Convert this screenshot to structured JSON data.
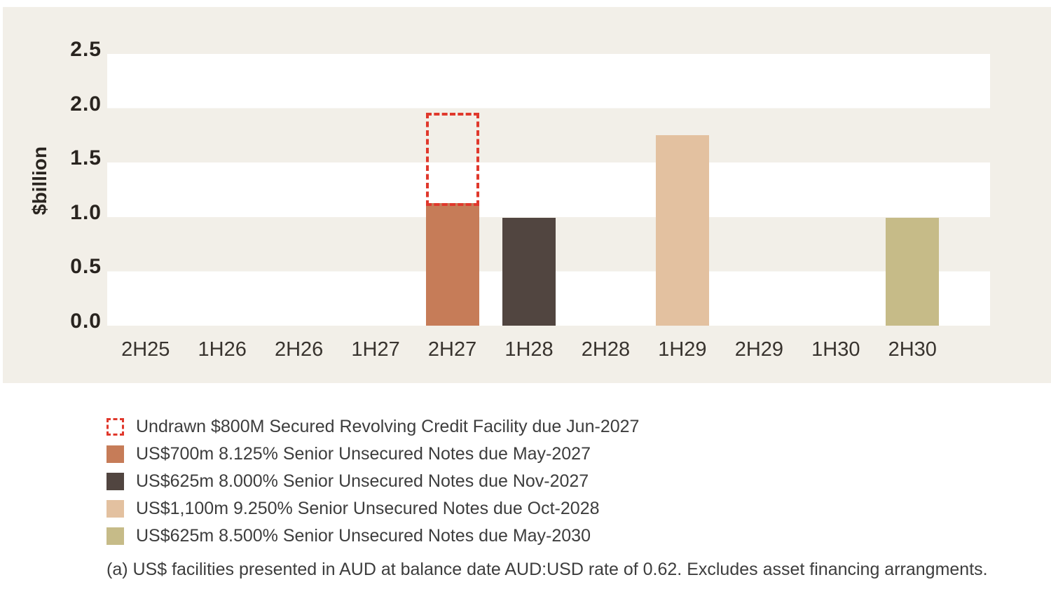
{
  "chart_data": {
    "type": "bar",
    "title": "",
    "ylabel": "$billion",
    "ylim": [
      0,
      2.5
    ],
    "ytick_interval": 0.5,
    "yticks": [
      "2.5",
      "2.0",
      "1.5",
      "1.0",
      "0.5",
      "0.0"
    ],
    "grid": "horizontal bands alternating white/beige every 0.5",
    "categories": [
      "2H25",
      "1H26",
      "2H26",
      "1H27",
      "2H27",
      "1H28",
      "2H28",
      "1H29",
      "2H29",
      "1H30",
      "2H30"
    ],
    "series": [
      {
        "name": "US$700m 8.125% Senior Unsecured Notes due May-2027",
        "color": "#c67c58",
        "values": [
          0,
          0,
          0,
          0,
          1.13,
          0,
          0,
          0,
          0,
          0,
          0
        ]
      },
      {
        "name": "US$625m 8.000% Senior Unsecured Notes due Nov-2027",
        "color": "#514540",
        "values": [
          0,
          0,
          0,
          0,
          0,
          0.99,
          0,
          0,
          0,
          0,
          0
        ]
      },
      {
        "name": "US$1,100m 9.250% Senior Unsecured Notes due Oct-2028",
        "color": "#e3c1a0",
        "values": [
          0,
          0,
          0,
          0,
          0,
          0,
          0,
          1.75,
          0,
          0,
          0
        ]
      },
      {
        "name": "US$625m 8.500% Senior Unsecured Notes due May-2030",
        "color": "#c6bb88",
        "values": [
          0,
          0,
          0,
          0,
          0,
          0,
          0,
          0,
          0,
          0,
          0.99
        ]
      }
    ],
    "overlay": {
      "name": "Undrawn $800M Secured Revolving Credit Facility due Jun-2027",
      "category": "2H27",
      "base": 1.13,
      "height": 0.8,
      "style": "dashed-outline",
      "border_color": "#e0382c"
    },
    "legend_position": "below-left"
  },
  "colors": {
    "panel_background": "#f2efe8",
    "band_white": "#ffffff",
    "axis_text": "#29241f",
    "body_text": "#3d3d3d",
    "undrawn_red": "#e0382c"
  },
  "legend": {
    "items": [
      {
        "swatch": "dashed-red",
        "label": "Undrawn $800M Secured Revolving Credit Facility due Jun-2027"
      },
      {
        "swatch": "#c67c58",
        "label": "US$700m 8.125% Senior Unsecured Notes due May-2027"
      },
      {
        "swatch": "#514540",
        "label": "US$625m 8.000% Senior Unsecured Notes due Nov-2027"
      },
      {
        "swatch": "#e3c1a0",
        "label": "US$1,100m 9.250% Senior Unsecured Notes due Oct-2028"
      },
      {
        "swatch": "#c6bb88",
        "label": "US$625m 8.500% Senior Unsecured Notes due May-2030"
      }
    ]
  },
  "footnote": "(a) US$ facilities presented in AUD at balance date AUD:USD rate of 0.62. Excludes asset financing arrangments."
}
